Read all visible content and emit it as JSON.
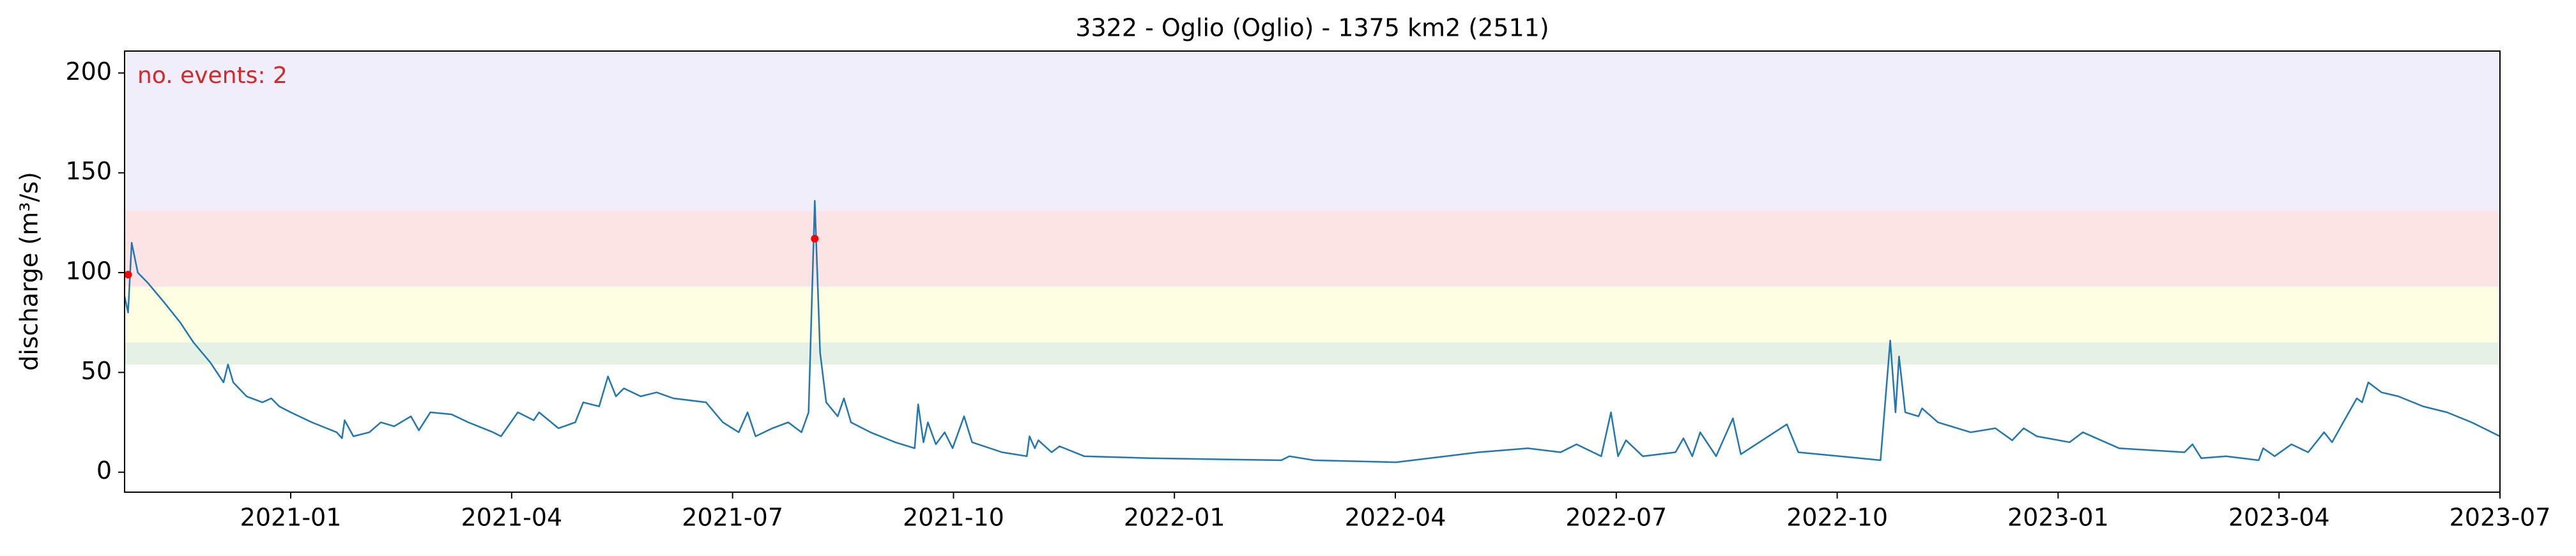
{
  "chart_data": {
    "type": "line",
    "title": "3322 - Oglio (Oglio) - 1375 km2 (2511)",
    "y_label": "discharge (m³/s)",
    "annotation": "no. events: 2",
    "annotation_color": "#d62728",
    "xlim": [
      2020.812,
      2023.5
    ],
    "xticks": [
      {
        "value": 2021.0,
        "label": "2021-01"
      },
      {
        "value": 2021.25,
        "label": "2021-04"
      },
      {
        "value": 2021.5,
        "label": "2021-07"
      },
      {
        "value": 2021.75,
        "label": "2021-10"
      },
      {
        "value": 2022.0,
        "label": "2022-01"
      },
      {
        "value": 2022.25,
        "label": "2022-04"
      },
      {
        "value": 2022.5,
        "label": "2022-07"
      },
      {
        "value": 2022.75,
        "label": "2022-10"
      },
      {
        "value": 2023.0,
        "label": "2023-01"
      },
      {
        "value": 2023.25,
        "label": "2023-04"
      },
      {
        "value": 2023.5,
        "label": "2023-07"
      }
    ],
    "ylim": [
      -10,
      211
    ],
    "yticks": [
      0,
      50,
      100,
      150,
      200
    ],
    "bands": [
      {
        "ymin": 54,
        "ymax": 65,
        "color": "#e4f1e4"
      },
      {
        "ymin": 65,
        "ymax": 93,
        "color": "#fefee3"
      },
      {
        "ymin": 93,
        "ymax": 131,
        "color": "#fde4e4"
      },
      {
        "ymin": 131,
        "ymax": 211,
        "color": "#f0eefa"
      }
    ],
    "series": [
      {
        "type": "line",
        "color": "#1f77b4",
        "x": [
          2020.812,
          2020.816,
          2020.82,
          2020.827,
          2020.838,
          2020.857,
          2020.875,
          2020.89,
          2020.909,
          2020.924,
          2020.929,
          2020.935,
          2020.95,
          2020.968,
          2020.978,
          2020.987,
          2021.0,
          2021.024,
          2021.052,
          2021.058,
          2021.061,
          2021.071,
          2021.089,
          2021.102,
          2021.117,
          2021.136,
          2021.145,
          2021.158,
          2021.182,
          2021.201,
          2021.229,
          2021.238,
          2021.257,
          2021.275,
          2021.281,
          2021.303,
          2021.322,
          2021.331,
          2021.349,
          2021.359,
          2021.368,
          2021.377,
          2021.396,
          2021.414,
          2021.433,
          2021.47,
          2021.489,
          2021.507,
          2021.517,
          2021.526,
          2021.545,
          2021.563,
          2021.578,
          2021.586,
          2021.593,
          2021.599,
          2021.606,
          2021.619,
          2021.626,
          2021.634,
          2021.656,
          2021.684,
          2021.706,
          2021.71,
          2021.716,
          2021.721,
          2021.73,
          2021.74,
          2021.749,
          2021.762,
          2021.771,
          2021.805,
          2021.833,
          2021.836,
          2021.842,
          2021.846,
          2021.861,
          2021.87,
          2021.898,
          2021.972,
          2022.121,
          2022.13,
          2022.158,
          2022.251,
          2022.307,
          2022.344,
          2022.4,
          2022.437,
          2022.455,
          2022.483,
          2022.494,
          2022.502,
          2022.511,
          2022.53,
          2022.567,
          2022.576,
          2022.586,
          2022.595,
          2022.613,
          2022.632,
          2022.641,
          2022.693,
          2022.706,
          2022.753,
          2022.799,
          2022.81,
          2022.816,
          2022.82,
          2022.827,
          2022.842,
          2022.846,
          2022.864,
          2022.901,
          2022.929,
          2022.948,
          2022.961,
          2022.976,
          2023.013,
          2023.028,
          2023.069,
          2023.143,
          2023.152,
          2023.162,
          2023.19,
          2023.227,
          2023.232,
          2023.245,
          2023.264,
          2023.283,
          2023.301,
          2023.31,
          2023.329,
          2023.338,
          2023.344,
          2023.351,
          2023.366,
          2023.385,
          2023.413,
          2023.44,
          2023.468,
          2023.5
        ],
        "values": [
          88,
          80,
          115,
          100,
          95,
          85,
          75,
          65,
          55,
          45,
          54,
          45,
          38,
          35,
          37,
          33,
          30,
          25,
          20,
          17,
          26,
          18,
          20,
          25,
          23,
          28,
          21,
          30,
          29,
          25,
          20,
          18,
          30,
          26,
          30,
          22,
          25,
          35,
          33,
          48,
          38,
          42,
          38,
          40,
          37,
          35,
          25,
          20,
          30,
          18,
          22,
          25,
          20,
          30,
          136,
          60,
          35,
          28,
          37,
          25,
          20,
          15,
          12,
          34,
          15,
          25,
          14,
          20,
          12,
          28,
          15,
          10,
          8,
          18,
          12,
          16,
          10,
          13,
          8,
          7,
          6,
          8,
          6,
          5,
          8,
          10,
          12,
          10,
          14,
          8,
          30,
          8,
          16,
          8,
          10,
          17,
          8,
          20,
          8,
          27,
          9,
          24,
          10,
          8,
          6,
          66,
          30,
          58,
          30,
          28,
          32,
          25,
          20,
          22,
          16,
          22,
          18,
          15,
          20,
          12,
          10,
          14,
          7,
          8,
          6,
          12,
          8,
          14,
          10,
          20,
          15,
          30,
          37,
          35,
          45,
          40,
          38,
          33,
          30,
          25,
          18
        ]
      },
      {
        "type": "scatter",
        "color": "#ff0000",
        "x": [
          2020.816,
          2021.593
        ],
        "values": [
          99,
          117
        ]
      }
    ]
  }
}
